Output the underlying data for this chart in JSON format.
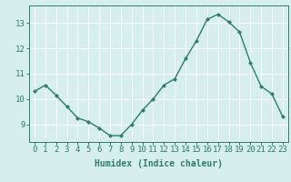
{
  "x": [
    0,
    1,
    2,
    3,
    4,
    5,
    6,
    7,
    8,
    9,
    10,
    11,
    12,
    13,
    14,
    15,
    16,
    17,
    18,
    19,
    20,
    21,
    22,
    23
  ],
  "y": [
    10.3,
    10.55,
    10.15,
    9.7,
    9.25,
    9.1,
    8.85,
    8.55,
    8.55,
    9.0,
    9.55,
    10.0,
    10.55,
    10.8,
    11.6,
    12.3,
    13.15,
    13.35,
    13.05,
    12.65,
    11.45,
    10.5,
    10.2,
    9.3
  ],
  "line_color": "#2e7d6e",
  "marker": "D",
  "marker_size": 2.0,
  "bg_color": "#d6eeee",
  "grid_color": "#ffffff",
  "tick_color": "#2e7d6e",
  "xlabel": "Humidex (Indice chaleur)",
  "xlim": [
    -0.5,
    23.5
  ],
  "ylim": [
    8.3,
    13.7
  ],
  "yticks": [
    9,
    10,
    11,
    12,
    13
  ],
  "xticks": [
    0,
    1,
    2,
    3,
    4,
    5,
    6,
    7,
    8,
    9,
    10,
    11,
    12,
    13,
    14,
    15,
    16,
    17,
    18,
    19,
    20,
    21,
    22,
    23
  ],
  "xlabel_fontsize": 7,
  "tick_fontsize": 6.5,
  "line_width": 1.0
}
